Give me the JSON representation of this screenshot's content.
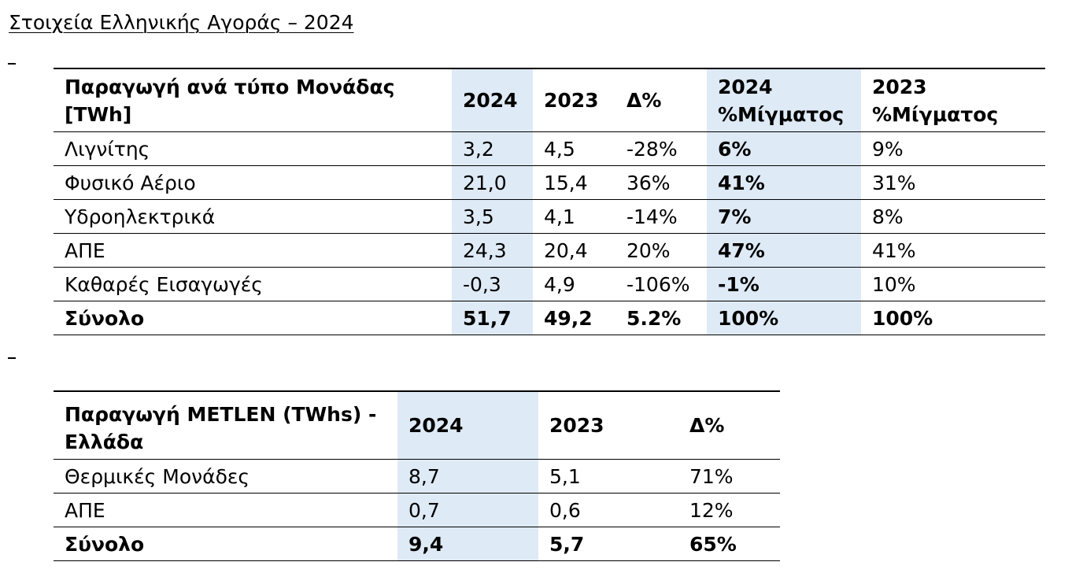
{
  "page": {
    "title": "Στοιχεία Ελληνικής Αγοράς – 2024"
  },
  "colors": {
    "highlight_column": "#deeaf6",
    "rule": "#000000"
  },
  "market_table": {
    "headers": [
      "Παραγωγή ανά τύπο Μονάδας [TWh]",
      "2024",
      "2023",
      "Δ%",
      "2024 %Μίγματος",
      "2023 %Μίγματος"
    ],
    "rows": [
      [
        "Λιγνίτης",
        "3,2",
        "4,5",
        "-28%",
        "6%",
        "9%"
      ],
      [
        "Φυσικό Αέριο",
        "21,0",
        "15,4",
        "36%",
        "41%",
        "31%"
      ],
      [
        "Υδροηλεκτρικά",
        "3,5",
        "4,1",
        "-14%",
        "7%",
        "8%"
      ],
      [
        "ΑΠΕ",
        "24,3",
        "20,4",
        "20%",
        "47%",
        "41%"
      ],
      [
        "Καθαρές Εισαγωγές",
        "-0,3",
        "4,9",
        "-106%",
        "-1%",
        "10%"
      ]
    ],
    "total": [
      "Σύνολο",
      "51,7",
      "49,2",
      "5.2%",
      "100%",
      "100%"
    ]
  },
  "metlen_table": {
    "headers": [
      "Παραγωγή METLEN (TWhs) - Ελλάδα",
      "2024",
      "2023",
      "Δ%"
    ],
    "rows": [
      [
        "Θερμικές Μονάδες",
        "8,7",
        "5,1",
        "71%"
      ],
      [
        "ΑΠΕ",
        "0,7",
        "0,6",
        "12%"
      ]
    ],
    "total": [
      "Σύνολο",
      "9,4",
      "5,7",
      "65%"
    ]
  }
}
